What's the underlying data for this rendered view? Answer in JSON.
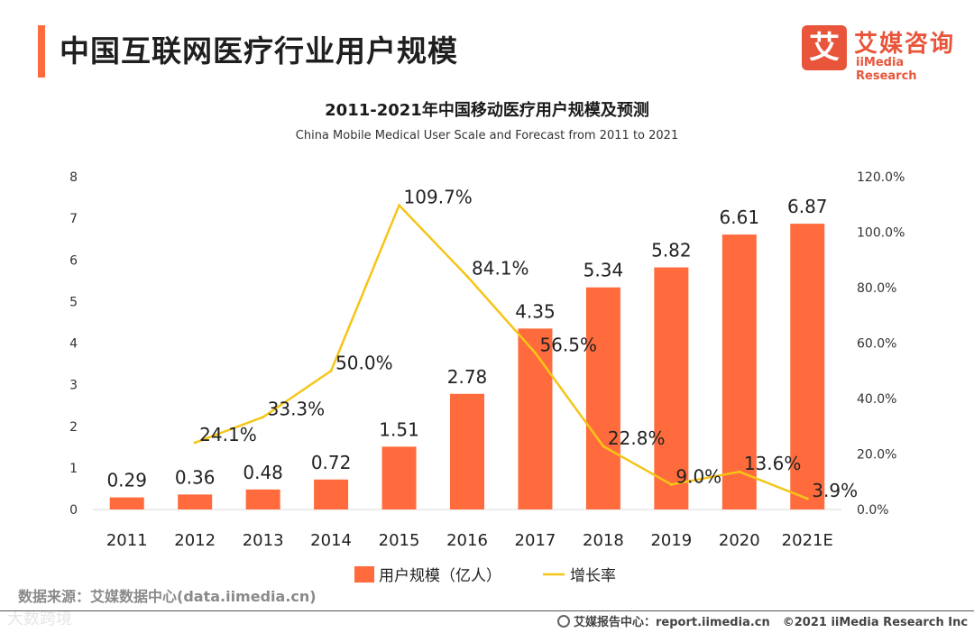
{
  "header": {
    "title": "中国互联网医疗行业用户规模",
    "accent_color": "#FF6B3D"
  },
  "logo": {
    "mark": "艾",
    "name_cn": "艾媒咨询",
    "name_en": "iiMedia Research",
    "color": "#E8553A"
  },
  "chart_data": {
    "type": "bar",
    "title": "2011-2021年中国移动医疗用户规模及预测",
    "subtitle": "China Mobile Medical User Scale and Forecast from 2011 to 2021",
    "categories": [
      "2011",
      "2012",
      "2013",
      "2014",
      "2015",
      "2016",
      "2017",
      "2018",
      "2019",
      "2020",
      "2021E"
    ],
    "series": [
      {
        "name": "用户规模（亿人）",
        "type": "bar",
        "axis": "left",
        "color": "#FF6B3D",
        "values": [
          0.29,
          0.36,
          0.48,
          0.72,
          1.51,
          2.78,
          4.35,
          5.34,
          5.82,
          6.61,
          6.87
        ],
        "labels": [
          "0.29",
          "0.36",
          "0.48",
          "0.72",
          "1.51",
          "2.78",
          "4.35",
          "5.34",
          "5.82",
          "6.61",
          "6.87"
        ]
      },
      {
        "name": "增长率",
        "type": "line",
        "axis": "right",
        "color": "#F5C518",
        "x": [
          "2012",
          "2013",
          "2014",
          "2015",
          "2016",
          "2017",
          "2018",
          "2019",
          "2020",
          "2021E"
        ],
        "values": [
          24.1,
          33.3,
          50.0,
          109.7,
          84.1,
          56.5,
          22.8,
          9.0,
          13.6,
          3.9
        ],
        "labels": [
          "24.1%",
          "33.3%",
          "50.0%",
          "109.7%",
          "84.1%",
          "56.5%",
          "22.8%",
          "9.0%",
          "13.6%",
          "3.9%"
        ]
      }
    ],
    "y_left": {
      "min": 0,
      "max": 8,
      "ticks": [
        "0",
        "1",
        "2",
        "3",
        "4",
        "5",
        "6",
        "7",
        "8"
      ]
    },
    "y_right": {
      "min": 0,
      "max": 120,
      "ticks": [
        "0.0%",
        "20.0%",
        "40.0%",
        "60.0%",
        "80.0%",
        "100.0%",
        "120.0%"
      ]
    },
    "grid": false,
    "legend_position": "bottom"
  },
  "footer": {
    "source": "数据来源：艾媒数据中心(data.iimedia.cn)",
    "watermark": "大数跨境",
    "report_center": "艾媒报告中心：report.iimedia.cn",
    "copyright": "©2021  iiMedia Research  Inc"
  }
}
